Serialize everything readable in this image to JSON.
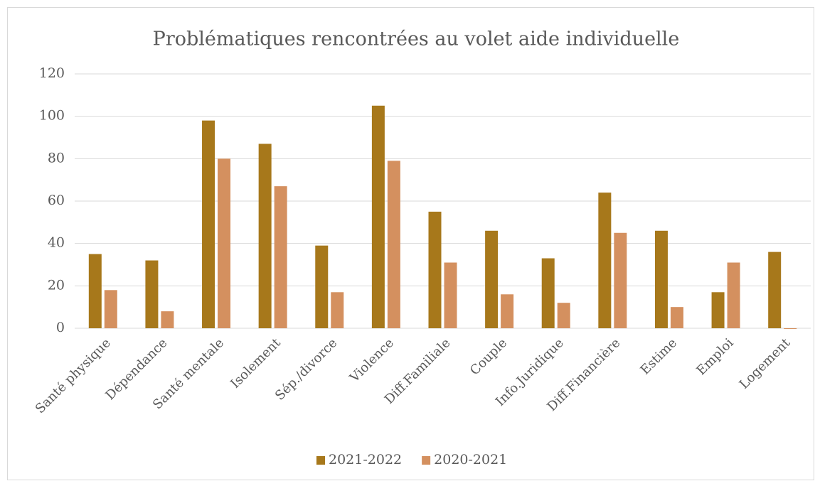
{
  "chart_data": {
    "type": "bar",
    "title": "Problématiques rencontrées au volet aide individuelle",
    "categories": [
      "Santé physique",
      "Dépendance",
      "Santé mentale",
      "Isolement",
      "Sép./divorce",
      "Violence",
      "Diff.Familiale",
      "Couple",
      "Info.Juridique",
      "Diff.Financière",
      "Estime",
      "Emploi",
      "Logement"
    ],
    "series": [
      {
        "name": "2021-2022",
        "color": "#a7781b",
        "values": [
          35,
          32,
          98,
          87,
          39,
          105,
          55,
          46,
          33,
          64,
          46,
          17,
          36
        ]
      },
      {
        "name": "2020-2021",
        "color": "#d4905f",
        "values": [
          18,
          8,
          80,
          67,
          17,
          79,
          31,
          16,
          12,
          45,
          10,
          31,
          0
        ]
      }
    ],
    "ylim": [
      0,
      120
    ],
    "yticks": [
      0,
      20,
      40,
      60,
      80,
      100,
      120
    ],
    "grid": true,
    "legend": "bottom"
  }
}
